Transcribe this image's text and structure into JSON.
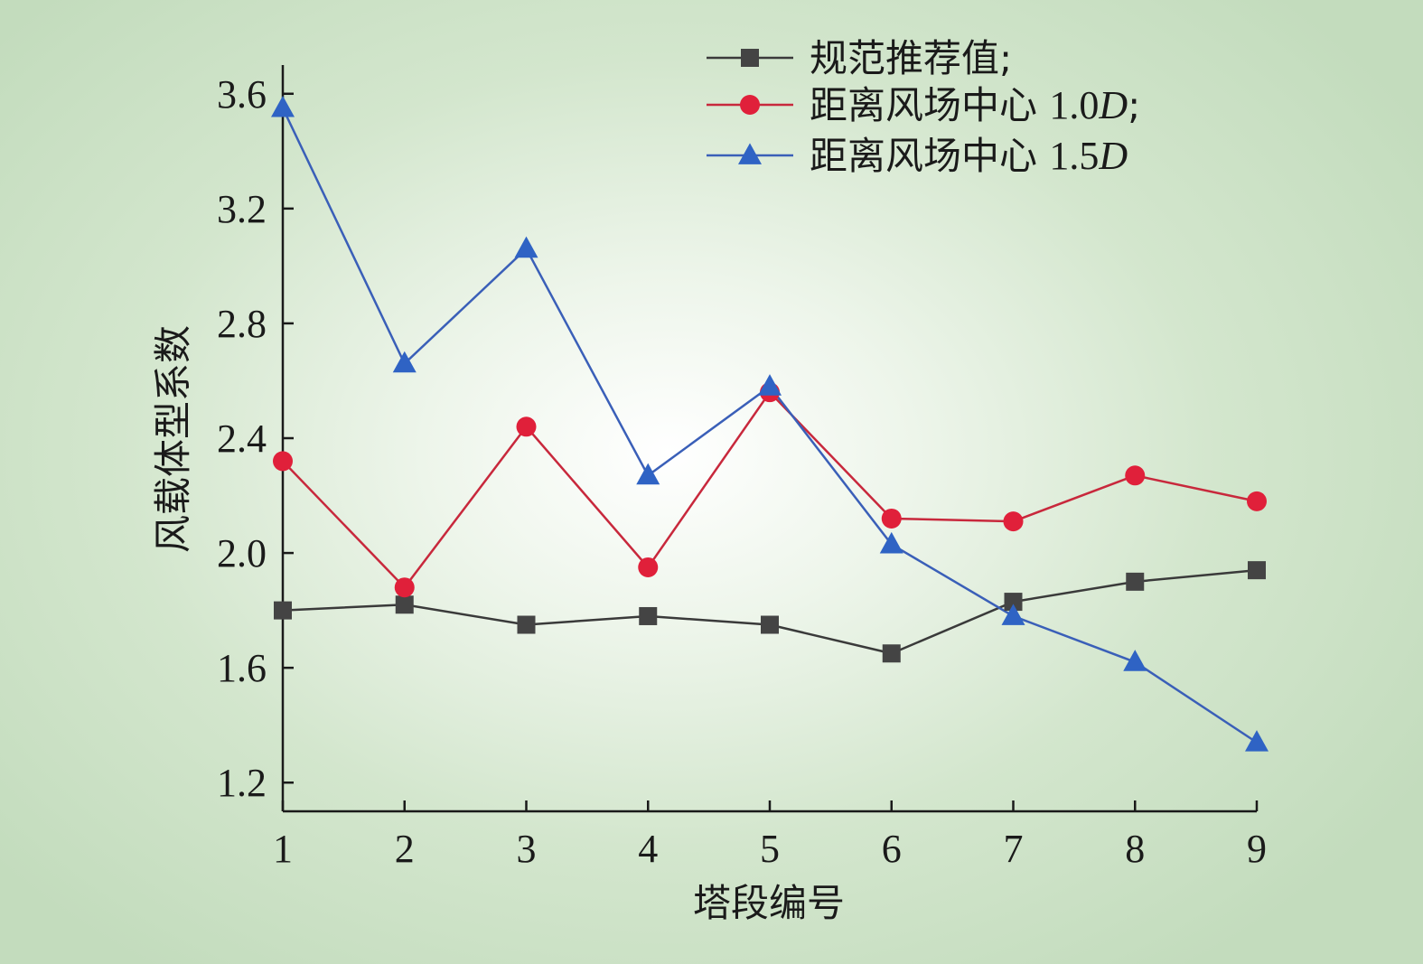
{
  "chart_data": {
    "type": "line",
    "xlabel": "塔段编号",
    "ylabel": "风载体型系数",
    "x": [
      1,
      2,
      3,
      4,
      5,
      6,
      7,
      8,
      9
    ],
    "xlim": [
      1,
      9
    ],
    "ylim": [
      1.1,
      3.7
    ],
    "yticks": [
      1.2,
      1.6,
      2.0,
      2.4,
      2.8,
      3.2,
      3.6
    ],
    "ytick_labels": [
      "1.2",
      "1.6",
      "2.0",
      "2.4",
      "2.8",
      "3.2",
      "3.6"
    ],
    "xtick_labels": [
      "1",
      "2",
      "3",
      "4",
      "5",
      "6",
      "7",
      "8",
      "9"
    ],
    "grid": false,
    "legend_position": "top-right",
    "series": [
      {
        "name": "规范推荐值;",
        "marker": "square",
        "color": "#3a3a3a",
        "marker_color": "#444444",
        "values": [
          1.8,
          1.82,
          1.75,
          1.78,
          1.75,
          1.65,
          1.83,
          1.9,
          1.94
        ]
      },
      {
        "name": "距离风场中心 1.0D;",
        "marker": "circle",
        "color": "#c8283c",
        "marker_color": "#e0203a",
        "values": [
          2.32,
          1.88,
          2.44,
          1.95,
          2.56,
          2.12,
          2.11,
          2.27,
          2.18
        ]
      },
      {
        "name": "距离风场中心 1.5D",
        "marker": "triangle",
        "color": "#3a5fb8",
        "marker_color": "#2f63c4",
        "values": [
          3.55,
          2.66,
          3.06,
          2.27,
          2.58,
          2.03,
          1.78,
          1.62,
          1.34
        ]
      }
    ]
  },
  "legend": [
    {
      "prefix": "规范推荐值",
      "num": "",
      "ital": "",
      "suffix": ";"
    },
    {
      "prefix": "距离风场中心 ",
      "num": "1.0",
      "ital": "D",
      "suffix": ";"
    },
    {
      "prefix": "距离风场中心 ",
      "num": "1.5",
      "ital": "D",
      "suffix": ""
    }
  ]
}
